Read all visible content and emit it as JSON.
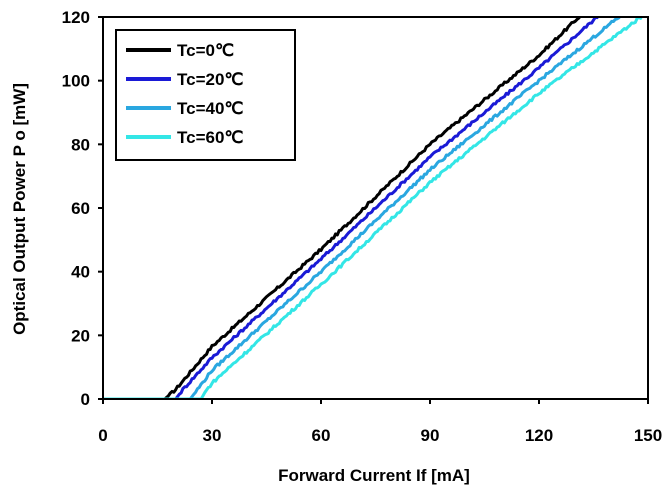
{
  "chart_data": {
    "type": "line",
    "title": "",
    "xlabel": "Forward Current If [mA]",
    "ylabel": "Optical Output Power P o [mW]",
    "xlim": [
      0,
      150
    ],
    "ylim": [
      0,
      120
    ],
    "xticks": [
      0,
      30,
      60,
      90,
      120,
      150
    ],
    "yticks": [
      0,
      20,
      40,
      60,
      80,
      100,
      120
    ],
    "grid": false,
    "legend_position": "top-left",
    "series": [
      {
        "name": "Tc=0℃",
        "color": "#000000",
        "x": [
          0,
          16,
          17,
          20,
          30,
          60,
          90,
          120,
          131
        ],
        "y": [
          0,
          0,
          0,
          3,
          16.5,
          47,
          80,
          108,
          120
        ]
      },
      {
        "name": "Tc=20℃",
        "color": "#1a1ad6",
        "x": [
          0,
          19,
          20,
          22,
          30,
          60,
          90,
          120,
          136
        ],
        "y": [
          0,
          0,
          0,
          3,
          13,
          44,
          76,
          104,
          120
        ]
      },
      {
        "name": "Tc=40℃",
        "color": "#2aa7e0",
        "x": [
          0,
          23,
          24,
          26,
          30,
          60,
          90,
          120,
          142
        ],
        "y": [
          0,
          0,
          0,
          3,
          9,
          40,
          72,
          100,
          120
        ]
      },
      {
        "name": "Tc=60℃",
        "color": "#33e6e6",
        "x": [
          0,
          26,
          27,
          28,
          30,
          60,
          90,
          120,
          148
        ],
        "y": [
          0,
          0,
          0,
          2,
          5,
          36,
          68,
          96,
          120
        ]
      }
    ]
  }
}
